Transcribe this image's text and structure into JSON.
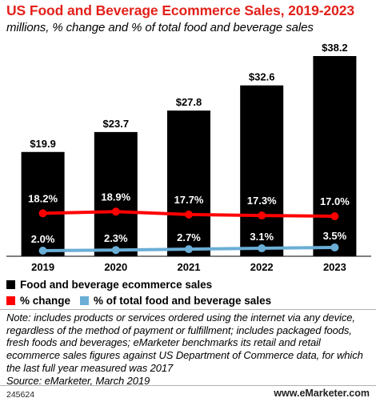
{
  "header": {
    "title": "US Food and Beverage Ecommerce Sales, 2019-2023",
    "subtitle": "millions, % change and % of total food and beverage sales"
  },
  "chart_data": {
    "type": "bar",
    "categories": [
      "2019",
      "2020",
      "2021",
      "2022",
      "2023"
    ],
    "series": [
      {
        "name": "Food and beverage ecommerce sales",
        "kind": "bar",
        "color": "#000000",
        "values": [
          19.9,
          23.7,
          27.8,
          32.6,
          38.2
        ],
        "labels": [
          "$19.9",
          "$23.7",
          "$27.8",
          "$32.6",
          "$38.2"
        ]
      },
      {
        "name": "% change",
        "kind": "line",
        "color": "#ff0000",
        "values": [
          18.2,
          18.9,
          17.7,
          17.3,
          17.0
        ],
        "labels": [
          "18.2%",
          "18.9%",
          "17.7%",
          "17.3%",
          "17.0%"
        ]
      },
      {
        "name": "% of total food and beverage sales",
        "kind": "line",
        "color": "#6aaed6",
        "values": [
          2.0,
          2.3,
          2.7,
          3.1,
          3.5
        ],
        "labels": [
          "2.0%",
          "2.3%",
          "2.7%",
          "3.1%",
          "3.5%"
        ]
      }
    ],
    "legend_position": "bottom-left",
    "grid": false
  },
  "note": "Note: includes products or services ordered using the internet via any device, regardless of the method of payment or fulfillment; includes packaged foods, fresh foods and beverages; eMarketer benchmarks its retail and retail ecommerce sales figures against US Department of Commerce data, for which the last full year measured was 2017",
  "source": "Source: eMarketer, March 2019",
  "footer": {
    "chart_id": "245624",
    "brand": "www.eMarketer.com"
  }
}
